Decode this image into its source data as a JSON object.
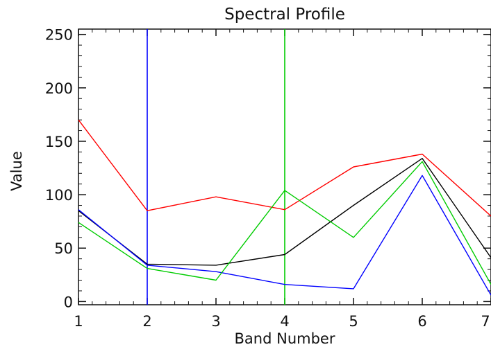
{
  "chart_data": {
    "type": "line",
    "title": "Spectral Profile",
    "xlabel": "Band Number",
    "ylabel": "Value",
    "xlim": [
      1,
      7
    ],
    "ylim": [
      -3,
      255
    ],
    "x": [
      1,
      2,
      3,
      4,
      5,
      6,
      7
    ],
    "x_ticks": [
      1,
      2,
      3,
      4,
      5,
      6,
      7
    ],
    "y_ticks": [
      0,
      50,
      100,
      150,
      200,
      250
    ],
    "grid": false,
    "legend": "none",
    "series": [
      {
        "color": "#ff0000",
        "values": [
          170,
          85,
          98,
          86,
          126,
          138,
          80
        ]
      },
      {
        "color": "#000000",
        "values": [
          85,
          35,
          34,
          44,
          90,
          134,
          41
        ]
      },
      {
        "color": "#0000ff",
        "values": [
          86,
          34,
          28,
          16,
          12,
          118,
          6
        ]
      },
      {
        "color": "#00cc00",
        "values": [
          74,
          31,
          20,
          104,
          60,
          131,
          16
        ]
      }
    ],
    "markers": [
      {
        "x": 2,
        "color": "#0000ff"
      },
      {
        "x": 4,
        "color": "#00cc00"
      }
    ]
  }
}
